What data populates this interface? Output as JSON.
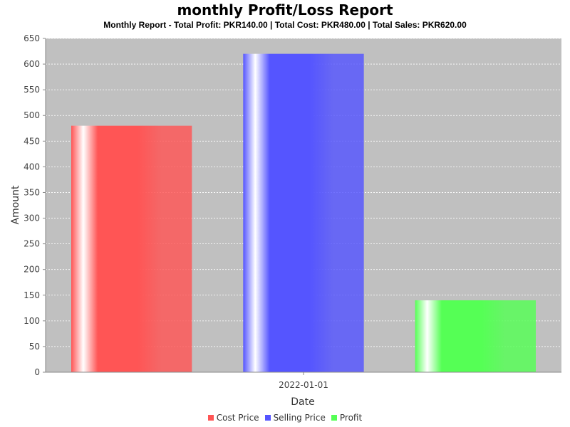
{
  "chart_data": {
    "type": "bar",
    "title": "monthly Profit/Loss Report",
    "subtitle": "Monthly Report - Total Profit: PKR140.00 | Total Cost: PKR480.00 | Total Sales: PKR620.00",
    "xlabel": "Date",
    "ylabel": "Amount",
    "categories": [
      "2022-01-01"
    ],
    "series": [
      {
        "name": "Cost Price",
        "values": [
          480
        ],
        "color": "#ff5555"
      },
      {
        "name": "Selling Price",
        "values": [
          620
        ],
        "color": "#5555ff"
      },
      {
        "name": "Profit",
        "values": [
          140
        ],
        "color": "#55ff55"
      }
    ],
    "ylim": [
      0,
      650
    ],
    "yticks": [
      0,
      50,
      100,
      150,
      200,
      250,
      300,
      350,
      400,
      450,
      500,
      550,
      600,
      650
    ],
    "grid": true,
    "legend_position": "bottom",
    "plot_background": "#c0c0c0"
  }
}
